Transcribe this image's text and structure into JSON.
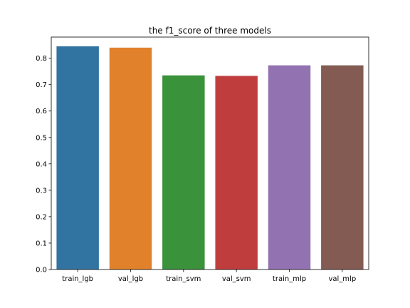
{
  "chart_data": {
    "type": "bar",
    "title": "the f1_score of three models",
    "xlabel": "",
    "ylabel": "",
    "categories": [
      "train_lgb",
      "val_lgb",
      "train_svm",
      "val_svm",
      "train_mlp",
      "val_mlp"
    ],
    "values": [
      0.845,
      0.84,
      0.735,
      0.733,
      0.773,
      0.773
    ],
    "colors": [
      "#3274a1",
      "#e1812c",
      "#3a923a",
      "#c03d3e",
      "#9372b2",
      "#845b53"
    ],
    "ylim": [
      0,
      0.88
    ],
    "yticks": [
      0.0,
      0.1,
      0.2,
      0.3,
      0.4,
      0.5,
      0.6,
      0.7,
      0.8
    ],
    "ytick_labels": [
      "0.0",
      "0.1",
      "0.2",
      "0.3",
      "0.4",
      "0.5",
      "0.6",
      "0.7",
      "0.8"
    ],
    "grid": false,
    "legend": "none"
  }
}
